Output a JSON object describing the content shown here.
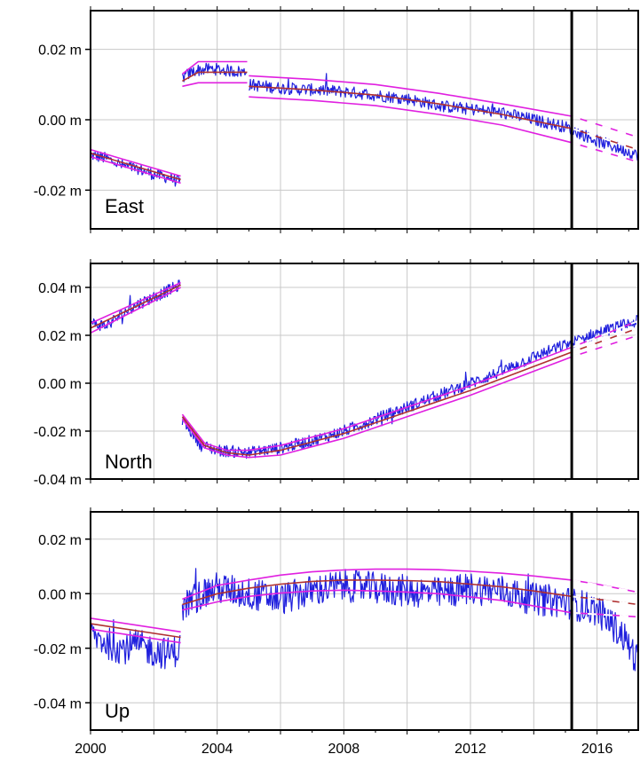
{
  "chart_data": [
    {
      "type": "line",
      "panel_label": "East",
      "unit": "m",
      "xlim": [
        2000,
        2017.3
      ],
      "ylim": [
        -0.031,
        0.031
      ],
      "y_ticks": [
        {
          "value": 0.02,
          "label": "0.02 m"
        },
        {
          "value": 0.0,
          "label": "0.00 m"
        },
        {
          "value": -0.02,
          "label": "-0.02 m"
        }
      ],
      "grid": true,
      "vertical_marker_year": 2015.2,
      "series": [
        {
          "role": "observed",
          "color": "#2020dd",
          "segments": [
            {
              "x": [
                2000.0,
                2000.5,
                2001.0,
                2001.5,
                2002.0,
                2002.5,
                2002.85
              ],
              "y": [
                -0.01,
                -0.011,
                -0.013,
                -0.014,
                -0.0155,
                -0.0165,
                -0.018
              ]
            },
            {
              "x": [
                2002.9,
                2003.3,
                2003.8,
                2004.3,
                2004.95
              ],
              "y": [
                0.012,
                0.014,
                0.0145,
                0.014,
                0.0135
              ]
            },
            {
              "x": [
                2005.0,
                2006.0,
                2007.0,
                2008.0,
                2009.0,
                2010.0,
                2011.0,
                2012.0,
                2013.0,
                2014.0,
                2015.0,
                2016.0,
                2017.3
              ],
              "y": [
                0.01,
                0.009,
                0.0085,
                0.008,
                0.007,
                0.006,
                0.004,
                0.003,
                0.002,
                0.0,
                -0.002,
                -0.006,
                -0.01
              ]
            }
          ]
        },
        {
          "role": "model",
          "color": "#b03030",
          "segments": [
            {
              "x": [
                2000.0,
                2002.85
              ],
              "y": [
                -0.0095,
                -0.017
              ]
            },
            {
              "x": [
                2002.9,
                2003.4,
                2004.95
              ],
              "y": [
                0.011,
                0.0135,
                0.0135
              ]
            },
            {
              "x": [
                2005.0,
                2007.0,
                2009.0,
                2011.0,
                2013.0,
                2015.2,
                2017.3
              ],
              "y": [
                0.0095,
                0.0085,
                0.007,
                0.0045,
                0.0015,
                -0.0025,
                -0.0085
              ]
            }
          ]
        },
        {
          "role": "upper-bound",
          "color": "#e020e0",
          "segments": [
            {
              "x": [
                2000.0,
                2002.85
              ],
              "y": [
                -0.0085,
                -0.016
              ]
            },
            {
              "x": [
                2002.9,
                2003.4,
                2004.95
              ],
              "y": [
                0.013,
                0.0165,
                0.0165
              ]
            },
            {
              "x": [
                2005.0,
                2007.0,
                2009.0,
                2011.0,
                2013.0,
                2015.2,
                2017.3
              ],
              "y": [
                0.0125,
                0.0115,
                0.01,
                0.0075,
                0.0045,
                0.001,
                -0.005
              ]
            }
          ]
        },
        {
          "role": "lower-bound",
          "color": "#e020e0",
          "segments": [
            {
              "x": [
                2000.0,
                2002.85
              ],
              "y": [
                -0.0105,
                -0.018
              ]
            },
            {
              "x": [
                2002.9,
                2003.4,
                2004.95
              ],
              "y": [
                0.0095,
                0.0105,
                0.0105
              ]
            },
            {
              "x": [
                2005.0,
                2007.0,
                2009.0,
                2011.0,
                2013.0,
                2015.2,
                2017.3
              ],
              "y": [
                0.0065,
                0.0055,
                0.004,
                0.0015,
                -0.0015,
                -0.0065,
                -0.012
              ]
            }
          ]
        }
      ]
    },
    {
      "type": "line",
      "panel_label": "North",
      "unit": "m",
      "xlim": [
        2000,
        2017.3
      ],
      "ylim": [
        -0.04,
        0.05
      ],
      "y_ticks": [
        {
          "value": 0.04,
          "label": "0.04 m"
        },
        {
          "value": 0.02,
          "label": "0.02 m"
        },
        {
          "value": 0.0,
          "label": "0.00 m"
        },
        {
          "value": -0.02,
          "label": "-0.02 m"
        },
        {
          "value": -0.04,
          "label": "-0.04 m"
        }
      ],
      "grid": true,
      "vertical_marker_year": 2015.2,
      "series": [
        {
          "role": "observed",
          "color": "#2020dd",
          "segments": [
            {
              "x": [
                2000.0,
                2000.5,
                2001.0,
                2001.5,
                2002.0,
                2002.5,
                2002.85
              ],
              "y": [
                0.025,
                0.024,
                0.029,
                0.033,
                0.036,
                0.039,
                0.041
              ]
            },
            {
              "x": [
                2002.9,
                2003.5,
                2004.0,
                2005.0,
                2006.0,
                2007.0,
                2008.0,
                2009.0,
                2010.0,
                2011.0,
                2012.0,
                2013.0,
                2014.0,
                2015.0,
                2016.0,
                2017.3
              ],
              "y": [
                -0.015,
                -0.026,
                -0.028,
                -0.029,
                -0.027,
                -0.024,
                -0.02,
                -0.015,
                -0.01,
                -0.005,
                0.0,
                0.005,
                0.011,
                0.016,
                0.021,
                0.026
              ]
            }
          ]
        },
        {
          "role": "model",
          "color": "#b03030",
          "segments": [
            {
              "x": [
                2000.0,
                2002.85
              ],
              "y": [
                0.023,
                0.041
              ]
            },
            {
              "x": [
                2002.9,
                2003.6,
                2004.3,
                2005.0,
                2006.0,
                2008.0,
                2010.0,
                2012.0,
                2014.0,
                2015.2,
                2017.3
              ],
              "y": [
                -0.014,
                -0.026,
                -0.029,
                -0.03,
                -0.028,
                -0.021,
                -0.012,
                -0.003,
                0.007,
                0.013,
                0.023
              ]
            }
          ]
        },
        {
          "role": "upper-bound",
          "color": "#e020e0",
          "segments": [
            {
              "x": [
                2000.0,
                2002.85
              ],
              "y": [
                0.025,
                0.042
              ]
            },
            {
              "x": [
                2002.9,
                2003.6,
                2004.3,
                2005.0,
                2006.0,
                2008.0,
                2010.0,
                2012.0,
                2014.0,
                2015.2,
                2017.3
              ],
              "y": [
                -0.013,
                -0.025,
                -0.028,
                -0.028,
                -0.026,
                -0.019,
                -0.01,
                -0.001,
                0.009,
                0.015,
                0.026
              ]
            }
          ]
        },
        {
          "role": "lower-bound",
          "color": "#e020e0",
          "segments": [
            {
              "x": [
                2000.0,
                2002.85
              ],
              "y": [
                0.021,
                0.04
              ]
            },
            {
              "x": [
                2002.9,
                2003.6,
                2004.3,
                2005.0,
                2006.0,
                2008.0,
                2010.0,
                2012.0,
                2014.0,
                2015.2,
                2017.3
              ],
              "y": [
                -0.015,
                -0.027,
                -0.03,
                -0.031,
                -0.03,
                -0.023,
                -0.014,
                -0.005,
                0.005,
                0.011,
                0.02
              ]
            }
          ]
        }
      ]
    },
    {
      "type": "line",
      "panel_label": "Up",
      "unit": "m",
      "xlim": [
        2000,
        2017.3
      ],
      "ylim": [
        -0.05,
        0.03
      ],
      "y_ticks": [
        {
          "value": 0.02,
          "label": "0.02 m"
        },
        {
          "value": 0.0,
          "label": "0.00 m"
        },
        {
          "value": -0.02,
          "label": "-0.02 m"
        },
        {
          "value": -0.04,
          "label": "-0.04 m"
        }
      ],
      "x_ticks": [
        {
          "value": 2000,
          "label": "2000"
        },
        {
          "value": 2004,
          "label": "2004"
        },
        {
          "value": 2008,
          "label": "2008"
        },
        {
          "value": 2012,
          "label": "2012"
        },
        {
          "value": 2016,
          "label": "2016"
        }
      ],
      "grid": true,
      "vertical_marker_year": 2015.2,
      "series": [
        {
          "role": "observed",
          "color": "#2020dd",
          "segments": [
            {
              "x": [
                2000.0,
                2000.5,
                2001.0,
                2001.5,
                2002.0,
                2002.5,
                2002.85
              ],
              "y": [
                -0.015,
                -0.018,
                -0.02,
                -0.019,
                -0.021,
                -0.022,
                -0.02
              ]
            },
            {
              "x": [
                2002.9,
                2003.5,
                2004.0,
                2005.0,
                2006.0,
                2007.0,
                2008.0,
                2009.0,
                2010.0,
                2011.0,
                2012.0,
                2013.0,
                2014.0,
                2015.0,
                2016.0,
                2016.8,
                2017.3
              ],
              "y": [
                -0.005,
                0.0,
                0.002,
                0.0,
                -0.002,
                0.001,
                0.003,
                0.002,
                0.001,
                0.0,
                0.002,
                0.001,
                -0.002,
                -0.003,
                -0.006,
                -0.015,
                -0.025
              ]
            }
          ]
        },
        {
          "role": "model",
          "color": "#b03030",
          "segments": [
            {
              "x": [
                2000.0,
                2002.85
              ],
              "y": [
                -0.011,
                -0.016
              ]
            },
            {
              "x": [
                2002.9,
                2004.0,
                2005.0,
                2006.0,
                2007.0,
                2008.0,
                2009.0,
                2010.0,
                2011.0,
                2012.0,
                2013.0,
                2014.0,
                2015.2,
                2016.0,
                2017.3
              ],
              "y": [
                -0.004,
                0.0,
                0.002,
                0.0035,
                0.0045,
                0.005,
                0.005,
                0.0048,
                0.0044,
                0.0035,
                0.0025,
                0.001,
                -0.001,
                -0.002,
                -0.004
              ]
            }
          ]
        },
        {
          "role": "upper-bound",
          "color": "#e020e0",
          "segments": [
            {
              "x": [
                2000.0,
                2002.85
              ],
              "y": [
                -0.009,
                -0.014
              ]
            },
            {
              "x": [
                2002.9,
                2004.0,
                2005.0,
                2006.0,
                2007.0,
                2008.0,
                2009.0,
                2010.0,
                2011.0,
                2012.0,
                2013.0,
                2014.0,
                2015.2,
                2016.0,
                2017.3
              ],
              "y": [
                -0.002,
                0.003,
                0.005,
                0.0068,
                0.008,
                0.0087,
                0.009,
                0.009,
                0.0088,
                0.0082,
                0.0075,
                0.0065,
                0.005,
                0.0035,
                0.0005
              ]
            }
          ]
        },
        {
          "role": "lower-bound",
          "color": "#e020e0",
          "segments": [
            {
              "x": [
                2000.0,
                2002.85
              ],
              "y": [
                -0.013,
                -0.018
              ]
            },
            {
              "x": [
                2002.9,
                2004.0,
                2005.0,
                2006.0,
                2007.0,
                2008.0,
                2009.0,
                2010.0,
                2011.0,
                2012.0,
                2013.0,
                2014.0,
                2015.2,
                2016.0,
                2017.3
              ],
              "y": [
                -0.006,
                -0.003,
                -0.001,
                0.0002,
                0.001,
                0.0013,
                0.001,
                0.0006,
                0.0,
                -0.0012,
                -0.0025,
                -0.0045,
                -0.007,
                -0.0075,
                -0.0085
              ]
            }
          ]
        }
      ]
    }
  ]
}
